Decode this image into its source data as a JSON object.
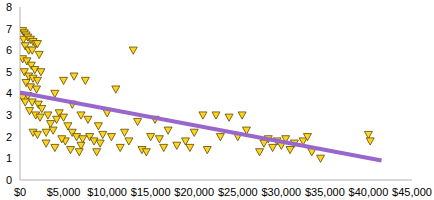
{
  "chart_data": {
    "type": "scatter",
    "marker": "triangle_down",
    "color": "#ffd320",
    "grid": false,
    "x": [
      300,
      500,
      700,
      400,
      900,
      1200,
      1500,
      1800,
      600,
      1000,
      1400,
      2000,
      2200,
      300,
      800,
      1300,
      1700,
      500,
      1000,
      1500,
      2000,
      2400,
      700,
      1200,
      1900,
      300,
      900,
      1400,
      2100,
      2500,
      600,
      1100,
      1800,
      2300,
      3000,
      1500,
      2000,
      3200,
      3500,
      3800,
      4000,
      3000,
      4500,
      4200,
      5000,
      5500,
      6000,
      5200,
      6500,
      7000,
      5800,
      6200,
      7500,
      5000,
      4000,
      6000,
      7000,
      7800,
      8000,
      8500,
      9000,
      9500,
      10000,
      11000,
      10500,
      11500,
      12000,
      13000,
      12500,
      13500,
      14000,
      14500,
      15000,
      15500,
      16000,
      17000,
      18000,
      19000,
      19500,
      20000,
      21000,
      21500,
      22500,
      23000,
      24000,
      25000,
      25500,
      26000,
      27500,
      28000,
      28500,
      29000,
      29500,
      30000,
      30500,
      31000,
      31500,
      32500,
      33000,
      33500,
      34500,
      40000,
      40200,
      16500,
      7200,
      8800,
      9200,
      4800,
      6800
    ],
    "values": [
      6.9,
      6.8,
      6.7,
      6.5,
      6.6,
      6.5,
      6.4,
      6.3,
      6.2,
      6.0,
      6.0,
      6.3,
      5.8,
      5.6,
      5.5,
      5.3,
      5.1,
      5.0,
      4.8,
      4.7,
      4.6,
      5.0,
      4.5,
      4.3,
      4.2,
      3.8,
      3.9,
      3.6,
      3.5,
      3.3,
      3.6,
      3.2,
      3.0,
      2.9,
      2.2,
      2.2,
      2.1,
      3.0,
      2.6,
      2.3,
      1.5,
      1.7,
      3.1,
      2.8,
      2.9,
      2.5,
      2.2,
      1.8,
      2.0,
      1.6,
      1.4,
      4.8,
      4.6,
      4.6,
      4.0,
      3.5,
      3.0,
      2.8,
      2.0,
      1.8,
      2.5,
      2.1,
      3.1,
      4.2,
      2.0,
      1.5,
      2.2,
      6.0,
      1.8,
      2.7,
      1.4,
      1.3,
      2.0,
      2.8,
      1.9,
      2.3,
      1.6,
      1.8,
      1.5,
      2.2,
      3.0,
      1.4,
      3.0,
      2.0,
      2.9,
      2.0,
      3.0,
      2.3,
      1.3,
      1.7,
      1.9,
      1.5,
      1.8,
      1.6,
      1.9,
      1.4,
      1.7,
      1.8,
      2.0,
      1.3,
      1.0,
      2.1,
      1.8,
      1.5,
      1.9,
      1.3,
      1.7,
      1.9,
      1.3
    ],
    "trend_line": {
      "x": [
        0,
        41500
      ],
      "values": [
        4.05,
        0.9
      ],
      "color": "#9966cc"
    },
    "xlim": [
      0,
      45000
    ],
    "xticks": [
      {
        "value": 0,
        "label": "$0"
      },
      {
        "value": 5000,
        "label": "$5,000"
      },
      {
        "value": 10000,
        "label": "$10,000"
      },
      {
        "value": 15000,
        "label": "$15,000"
      },
      {
        "value": 20000,
        "label": "$20,000"
      },
      {
        "value": 25000,
        "label": "$25,000"
      },
      {
        "value": 30000,
        "label": "$30,000"
      },
      {
        "value": 35000,
        "label": "$35,000"
      },
      {
        "value": 40000,
        "label": "$40,000"
      },
      {
        "value": 45000,
        "label": "$45,000"
      }
    ],
    "ylim": [
      0,
      8
    ],
    "yticks": [
      0,
      1,
      2,
      3,
      4,
      5,
      6,
      7,
      8
    ]
  }
}
